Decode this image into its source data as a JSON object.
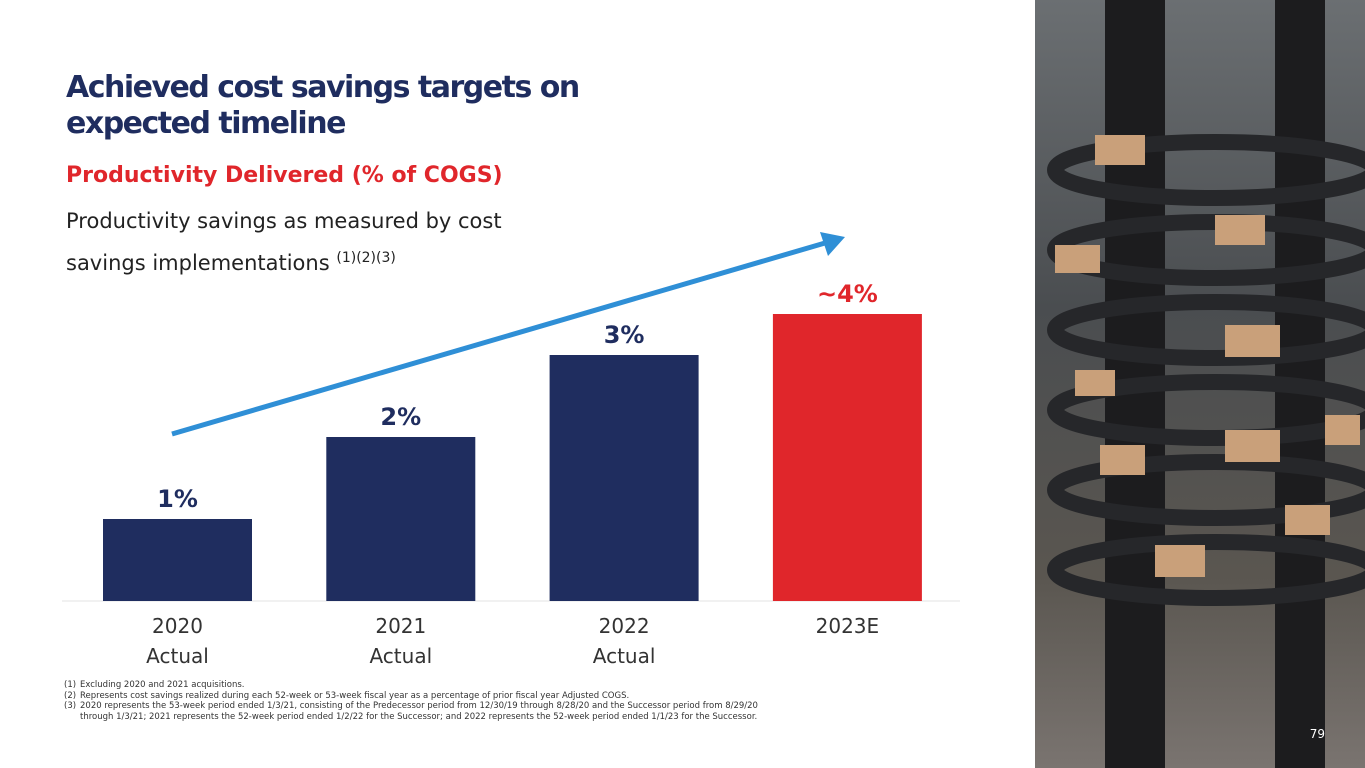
{
  "title": "Achieved cost savings targets on expected timeline",
  "subtitle": "Productivity Delivered (% of COGS)",
  "description": "Productivity savings as measured by cost savings implementations",
  "description_refs": "(1)(2)(3)",
  "chart_data": {
    "type": "bar",
    "categories": [
      "2020 Actual",
      "2021 Actual",
      "2022 Actual",
      "2023E"
    ],
    "category_lines": [
      [
        "2020",
        "Actual"
      ],
      [
        "2021",
        "Actual"
      ],
      [
        "2022",
        "Actual"
      ],
      [
        "2023E",
        ""
      ]
    ],
    "values": [
      1,
      2,
      3,
      3.5
    ],
    "labels": [
      "1%",
      "2%",
      "3%",
      "~4%"
    ],
    "colors": [
      "#1f2d5f",
      "#1f2d5f",
      "#1f2d5f",
      "#e0262b"
    ],
    "ylim": [
      0,
      3.6
    ],
    "trend_arrow": "increasing",
    "arrow_color": "#2f8fd6"
  },
  "footnotes": [
    {
      "n": "(1)",
      "text": "Excluding 2020 and 2021 acquisitions."
    },
    {
      "n": "(2)",
      "text": "Represents cost savings realized during each 52-week or 53-week fiscal year as a percentage of prior fiscal year Adjusted COGS."
    },
    {
      "n": "(3)",
      "text": "2020 represents the 53-week period ended 1/3/21, consisting of the Predecessor period from 12/30/19 through 8/28/20 and the Successor period from 8/29/20 through 1/3/21; 2021 represents the 52-week period ended 1/2/22 for the Successor; and 2022 represents the 52-week period ended 1/1/23 for the Successor."
    }
  ],
  "page_number": "79"
}
